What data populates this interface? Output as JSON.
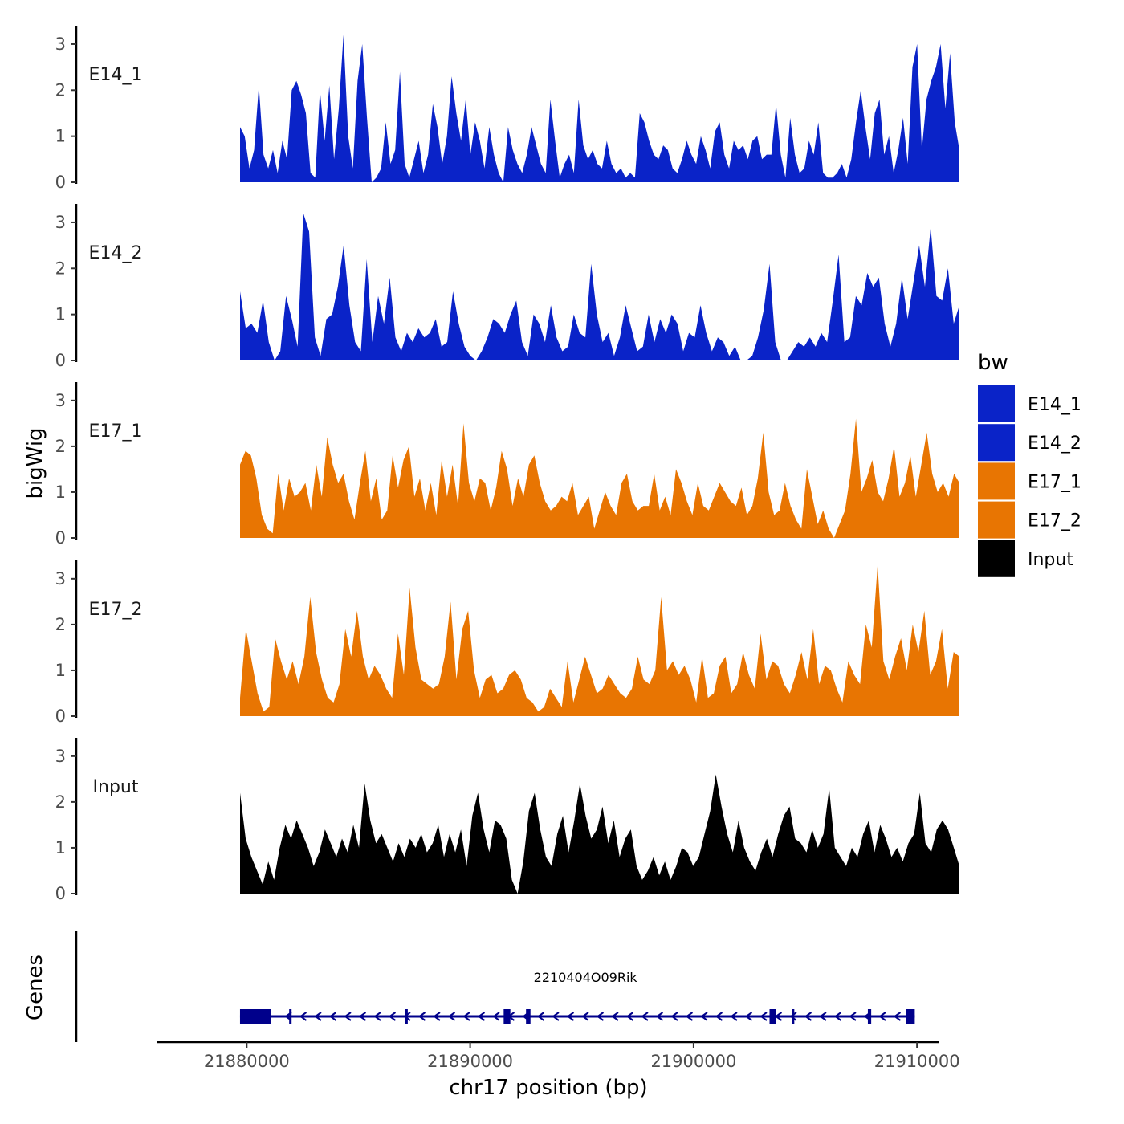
{
  "chart_data": {
    "type": "area",
    "ylabel": "bigWig",
    "xlabel": "chr17 position (bp)",
    "genes_label": "Genes",
    "xlim": [
      21876000,
      21911000
    ],
    "ylim": [
      0,
      3.4
    ],
    "y_ticks": [
      0,
      1,
      2,
      3
    ],
    "x_ticks": [
      21880000,
      21890000,
      21900000,
      21910000
    ],
    "x_tick_labels": [
      "21880000",
      "21890000",
      "21900000",
      "21910000"
    ],
    "legend": {
      "title": "bw",
      "position": "right",
      "entries": [
        {
          "name": "E14_1",
          "color": "#0A23C8"
        },
        {
          "name": "E14_2",
          "color": "#0A23C8"
        },
        {
          "name": "E17_1",
          "color": "#E87502"
        },
        {
          "name": "E17_2",
          "color": "#E87502"
        },
        {
          "name": "Input",
          "color": "#000000"
        }
      ]
    },
    "series_x_range": [
      21879700,
      21911900
    ],
    "series": [
      {
        "name": "E14_1",
        "label": "E14_1",
        "color": "#0A23C8",
        "values": [
          1.2,
          1.0,
          0.3,
          0.7,
          2.1,
          0.6,
          0.3,
          0.7,
          0.2,
          0.9,
          0.5,
          2.0,
          2.2,
          1.9,
          1.5,
          0.2,
          0.1,
          2.0,
          0.9,
          2.1,
          0.5,
          1.6,
          3.2,
          1.0,
          0.3,
          2.2,
          3.0,
          1.4,
          0.0,
          0.1,
          0.3,
          1.3,
          0.4,
          0.7,
          2.4,
          0.4,
          0.1,
          0.5,
          0.9,
          0.2,
          0.6,
          1.7,
          1.2,
          0.4,
          1.0,
          2.3,
          1.5,
          0.9,
          1.8,
          0.6,
          1.3,
          0.9,
          0.3,
          1.2,
          0.6,
          0.2,
          0.0,
          1.2,
          0.7,
          0.4,
          0.2,
          0.6,
          1.2,
          0.8,
          0.4,
          0.2,
          1.8,
          0.9,
          0.1,
          0.4,
          0.6,
          0.2,
          1.8,
          0.8,
          0.5,
          0.7,
          0.4,
          0.3,
          0.9,
          0.4,
          0.2,
          0.3,
          0.1,
          0.2,
          0.1,
          1.5,
          1.3,
          0.9,
          0.6,
          0.5,
          0.8,
          0.7,
          0.3,
          0.2,
          0.5,
          0.9,
          0.6,
          0.4,
          1.0,
          0.7,
          0.3,
          1.1,
          1.3,
          0.6,
          0.3,
          0.9,
          0.7,
          0.8,
          0.5,
          0.9,
          1.0,
          0.5,
          0.6,
          0.6,
          1.7,
          0.6,
          0.1,
          1.4,
          0.6,
          0.2,
          0.3,
          0.9,
          0.6,
          1.3,
          0.2,
          0.1,
          0.1,
          0.2,
          0.4,
          0.1,
          0.5,
          1.3,
          2.0,
          1.2,
          0.5,
          1.5,
          1.8,
          0.6,
          1.0,
          0.2,
          0.7,
          1.4,
          0.4,
          2.5,
          3.0,
          0.7,
          1.8,
          2.2,
          2.5,
          3.0,
          1.6,
          2.8,
          1.3,
          0.7
        ]
      },
      {
        "name": "E14_2",
        "label": "E14_2",
        "color": "#0A23C8",
        "values": [
          1.5,
          0.7,
          0.8,
          0.6,
          1.3,
          0.4,
          0.0,
          0.2,
          1.4,
          0.9,
          0.3,
          3.2,
          2.8,
          0.5,
          0.1,
          0.9,
          1.0,
          1.6,
          2.5,
          1.2,
          0.4,
          0.2,
          2.2,
          0.4,
          1.4,
          0.8,
          1.8,
          0.5,
          0.2,
          0.6,
          0.4,
          0.7,
          0.5,
          0.6,
          0.9,
          0.3,
          0.4,
          1.5,
          0.8,
          0.3,
          0.1,
          0.0,
          0.2,
          0.5,
          0.9,
          0.8,
          0.6,
          1.0,
          1.3,
          0.4,
          0.1,
          1.0,
          0.8,
          0.4,
          1.2,
          0.5,
          0.2,
          0.3,
          1.0,
          0.6,
          0.5,
          2.1,
          1.0,
          0.4,
          0.6,
          0.1,
          0.5,
          1.2,
          0.7,
          0.2,
          0.3,
          1.0,
          0.4,
          0.9,
          0.6,
          1.0,
          0.8,
          0.2,
          0.6,
          0.5,
          1.2,
          0.6,
          0.2,
          0.5,
          0.4,
          0.1,
          0.3,
          0.0,
          0.0,
          0.1,
          0.5,
          1.1,
          2.1,
          0.4,
          0.0,
          0.0,
          0.2,
          0.4,
          0.3,
          0.5,
          0.3,
          0.6,
          0.4,
          1.3,
          2.3,
          0.4,
          0.5,
          1.4,
          1.2,
          1.9,
          1.6,
          1.8,
          0.8,
          0.3,
          0.8,
          1.8,
          0.9,
          1.7,
          2.5,
          1.6,
          2.9,
          1.4,
          1.3,
          2.0,
          0.8,
          1.2
        ]
      },
      {
        "name": "E17_1",
        "label": "E17_1",
        "color": "#E87502",
        "values": [
          1.6,
          1.9,
          1.8,
          1.3,
          0.5,
          0.2,
          0.1,
          1.4,
          0.6,
          1.3,
          0.9,
          1.0,
          1.2,
          0.6,
          1.6,
          0.9,
          2.2,
          1.6,
          1.2,
          1.4,
          0.8,
          0.4,
          1.2,
          1.9,
          0.8,
          1.3,
          0.4,
          0.6,
          1.8,
          1.1,
          1.7,
          2.0,
          0.9,
          1.3,
          0.6,
          1.2,
          0.5,
          1.7,
          0.9,
          1.6,
          0.7,
          2.5,
          1.2,
          0.8,
          1.3,
          1.2,
          0.6,
          1.1,
          1.9,
          1.5,
          0.7,
          1.3,
          0.9,
          1.6,
          1.8,
          1.2,
          0.8,
          0.6,
          0.7,
          0.9,
          0.8,
          1.2,
          0.5,
          0.7,
          0.9,
          0.2,
          0.6,
          1.0,
          0.7,
          0.5,
          1.2,
          1.4,
          0.8,
          0.6,
          0.7,
          0.7,
          1.4,
          0.6,
          0.9,
          0.5,
          1.5,
          1.2,
          0.8,
          0.5,
          1.2,
          0.7,
          0.6,
          0.9,
          1.2,
          1.0,
          0.8,
          0.7,
          1.1,
          0.5,
          0.7,
          1.3,
          2.3,
          1.0,
          0.5,
          0.6,
          1.2,
          0.7,
          0.4,
          0.2,
          1.5,
          0.9,
          0.3,
          0.6,
          0.2,
          0.0,
          0.3,
          0.6,
          1.4,
          2.6,
          1.0,
          1.3,
          1.7,
          1.0,
          0.8,
          1.3,
          2.0,
          0.9,
          1.2,
          1.8,
          0.9,
          1.6,
          2.3,
          1.4,
          1.0,
          1.2,
          0.9,
          1.4,
          1.2
        ]
      },
      {
        "name": "E17_2",
        "label": "E17_2",
        "color": "#E87502",
        "values": [
          0.4,
          1.9,
          1.2,
          0.5,
          0.1,
          0.2,
          1.7,
          1.2,
          0.8,
          1.2,
          0.7,
          1.3,
          2.6,
          1.4,
          0.8,
          0.4,
          0.3,
          0.7,
          1.9,
          1.3,
          2.3,
          1.3,
          0.8,
          1.1,
          0.9,
          0.6,
          0.4,
          1.8,
          0.9,
          2.8,
          1.5,
          0.8,
          0.7,
          0.6,
          0.7,
          1.3,
          2.5,
          0.8,
          1.9,
          2.3,
          1.0,
          0.4,
          0.8,
          0.9,
          0.5,
          0.6,
          0.9,
          1.0,
          0.8,
          0.4,
          0.3,
          0.1,
          0.2,
          0.6,
          0.4,
          0.2,
          1.2,
          0.3,
          0.8,
          1.3,
          0.9,
          0.5,
          0.6,
          0.9,
          0.7,
          0.5,
          0.4,
          0.6,
          1.3,
          0.8,
          0.7,
          1.0,
          2.6,
          1.0,
          1.2,
          0.9,
          1.1,
          0.8,
          0.3,
          1.3,
          0.4,
          0.5,
          1.1,
          1.3,
          0.5,
          0.7,
          1.4,
          0.9,
          0.6,
          1.8,
          0.8,
          1.2,
          1.1,
          0.7,
          0.5,
          0.9,
          1.4,
          0.8,
          1.9,
          0.7,
          1.1,
          1.0,
          0.6,
          0.3,
          1.2,
          0.9,
          0.7,
          2.0,
          1.5,
          3.3,
          1.2,
          0.8,
          1.3,
          1.7,
          1.0,
          2.0,
          1.4,
          2.3,
          0.9,
          1.2,
          1.9,
          0.6,
          1.4,
          1.3
        ]
      },
      {
        "name": "Input",
        "label": "Input",
        "color": "#000000",
        "values": [
          2.2,
          1.2,
          0.8,
          0.5,
          0.2,
          0.7,
          0.3,
          1.0,
          1.5,
          1.2,
          1.6,
          1.3,
          1.0,
          0.6,
          0.9,
          1.4,
          1.1,
          0.8,
          1.2,
          0.9,
          1.5,
          1.0,
          2.4,
          1.6,
          1.1,
          1.3,
          1.0,
          0.7,
          1.1,
          0.8,
          1.2,
          1.0,
          1.3,
          0.9,
          1.1,
          1.5,
          0.8,
          1.3,
          0.9,
          1.4,
          0.6,
          1.7,
          2.2,
          1.4,
          0.9,
          1.6,
          1.5,
          1.2,
          0.3,
          0.0,
          0.7,
          1.8,
          2.2,
          1.4,
          0.8,
          0.6,
          1.3,
          1.7,
          0.9,
          1.6,
          2.4,
          1.7,
          1.2,
          1.4,
          1.9,
          1.1,
          1.6,
          0.8,
          1.2,
          1.4,
          0.6,
          0.3,
          0.5,
          0.8,
          0.4,
          0.7,
          0.3,
          0.6,
          1.0,
          0.9,
          0.6,
          0.8,
          1.3,
          1.8,
          2.6,
          1.9,
          1.3,
          0.9,
          1.6,
          1.0,
          0.7,
          0.5,
          0.9,
          1.2,
          0.8,
          1.3,
          1.7,
          1.9,
          1.2,
          1.1,
          0.9,
          1.4,
          1.0,
          1.3,
          2.3,
          1.0,
          0.8,
          0.6,
          1.0,
          0.8,
          1.3,
          1.6,
          0.9,
          1.5,
          1.2,
          0.8,
          1.0,
          0.7,
          1.1,
          1.3,
          2.2,
          1.1,
          0.9,
          1.4,
          1.6,
          1.4,
          1.0,
          0.6
        ]
      }
    ],
    "gene": {
      "name": "2210404O09Rik",
      "strand": "-",
      "start": 21879700,
      "end": 21909900,
      "exons": [
        {
          "start": 21879700,
          "end": 21881100
        },
        {
          "start": 21881900,
          "end": 21882000
        },
        {
          "start": 21887100,
          "end": 21887200
        },
        {
          "start": 21891500,
          "end": 21891800
        },
        {
          "start": 21892500,
          "end": 21892700
        },
        {
          "start": 21903400,
          "end": 21903700
        },
        {
          "start": 21904400,
          "end": 21904500
        },
        {
          "start": 21907800,
          "end": 21907950
        },
        {
          "start": 21909500,
          "end": 21909900
        }
      ]
    }
  }
}
